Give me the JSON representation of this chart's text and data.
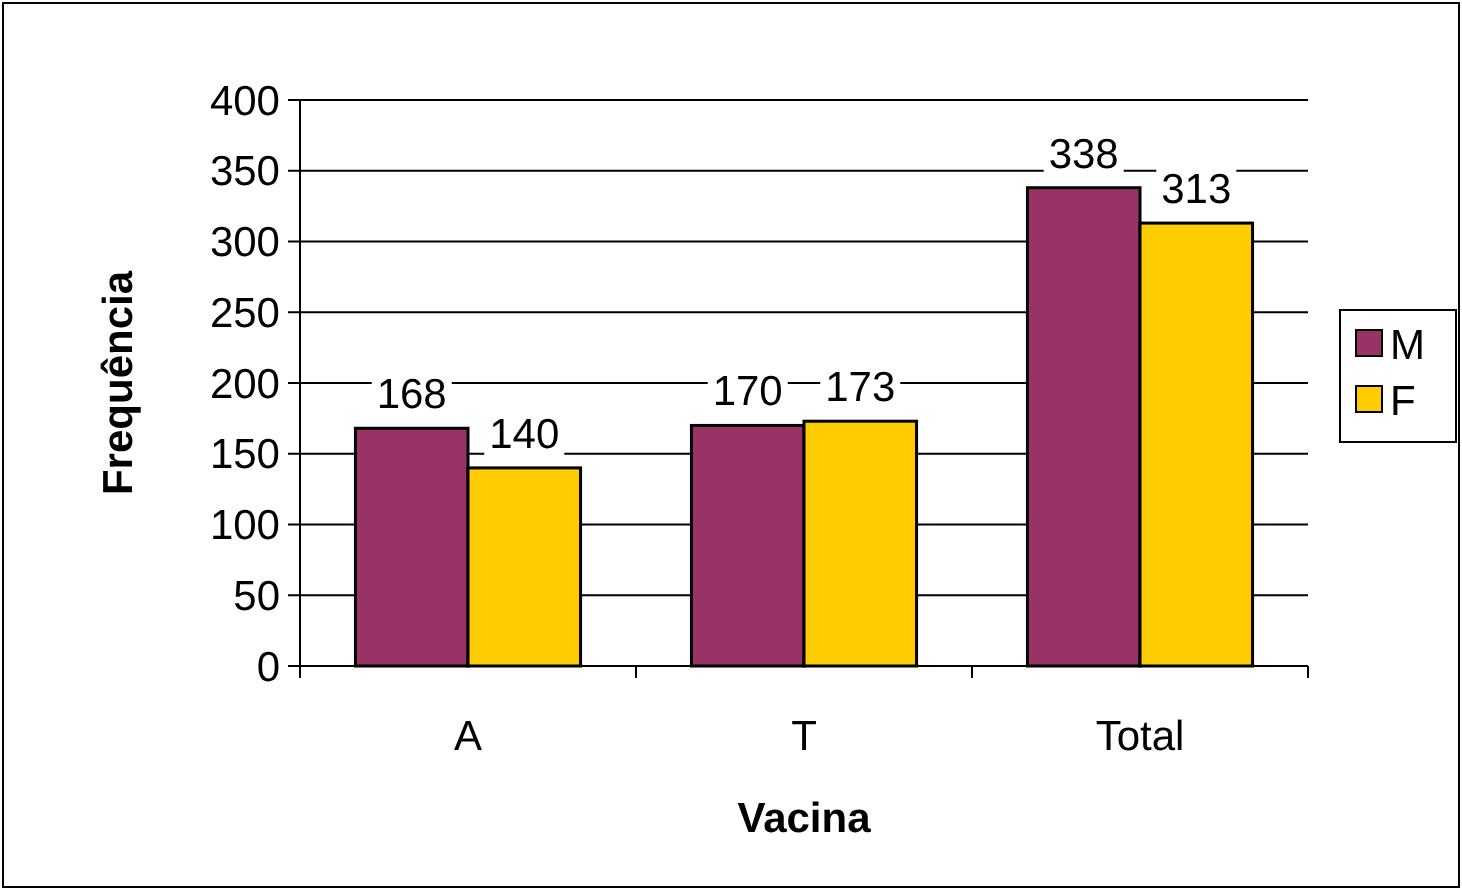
{
  "chart_data": {
    "type": "bar",
    "xlabel": "Vacina",
    "ylabel": "Frequência",
    "categories": [
      "A",
      "T",
      "Total"
    ],
    "series": [
      {
        "name": "M",
        "color": "#993366",
        "values": [
          168,
          170,
          338
        ]
      },
      {
        "name": "F",
        "color": "#ffcc00",
        "values": [
          140,
          173,
          313
        ]
      }
    ],
    "ylim": [
      0,
      400
    ],
    "yticks": [
      0,
      50,
      100,
      150,
      200,
      250,
      300,
      350,
      400
    ],
    "grid": "y",
    "legend": "right",
    "data_labels": true
  }
}
